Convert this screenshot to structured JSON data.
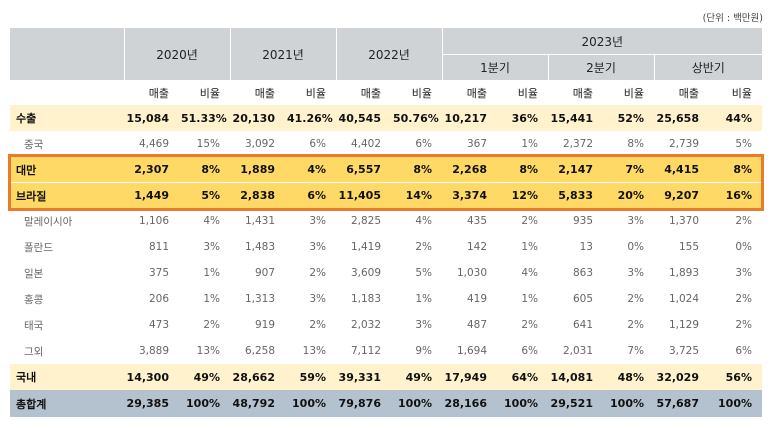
{
  "unit_note": "(단위 : 백만원)",
  "headers": {
    "years": [
      "2020년",
      "2021년",
      "2022년"
    ],
    "year2023": "2023년",
    "periods2023": [
      "1분기",
      "2분기",
      "상반기"
    ],
    "revenue": "매출",
    "ratio": "비율"
  },
  "rows": [
    {
      "label": "수출",
      "style": "major",
      "cells": [
        "15,084",
        "51.33%",
        "20,130",
        "41.26%",
        "40,545",
        "50.76%",
        "10,217",
        "36%",
        "15,441",
        "52%",
        "25,658",
        "44%"
      ]
    },
    {
      "label": "중국",
      "style": "minor",
      "cells": [
        "4,469",
        "15%",
        "3,092",
        "6%",
        "4,402",
        "6%",
        "367",
        "1%",
        "2,372",
        "8%",
        "2,739",
        "5%"
      ]
    },
    {
      "label": "대만",
      "style": "hl first",
      "cells": [
        "2,307",
        "8%",
        "1,889",
        "4%",
        "6,557",
        "8%",
        "2,268",
        "8%",
        "2,147",
        "7%",
        "4,415",
        "8%"
      ]
    },
    {
      "label": "브라질",
      "style": "hl",
      "cells": [
        "1,449",
        "5%",
        "2,838",
        "6%",
        "11,405",
        "14%",
        "3,374",
        "12%",
        "5,833",
        "20%",
        "9,207",
        "16%"
      ]
    },
    {
      "label": "말레이시아",
      "style": "minor",
      "cells": [
        "1,106",
        "4%",
        "1,431",
        "3%",
        "2,825",
        "4%",
        "435",
        "2%",
        "935",
        "3%",
        "1,370",
        "2%"
      ]
    },
    {
      "label": "폴란드",
      "style": "minor",
      "cells": [
        "811",
        "3%",
        "1,483",
        "3%",
        "1,419",
        "2%",
        "142",
        "1%",
        "13",
        "0%",
        "155",
        "0%"
      ]
    },
    {
      "label": "일본",
      "style": "minor",
      "cells": [
        "375",
        "1%",
        "907",
        "2%",
        "3,609",
        "5%",
        "1,030",
        "4%",
        "863",
        "3%",
        "1,893",
        "3%"
      ]
    },
    {
      "label": "홍콩",
      "style": "minor",
      "cells": [
        "206",
        "1%",
        "1,313",
        "3%",
        "1,183",
        "1%",
        "419",
        "1%",
        "605",
        "2%",
        "1,024",
        "2%"
      ]
    },
    {
      "label": "태국",
      "style": "minor",
      "cells": [
        "473",
        "2%",
        "919",
        "2%",
        "2,032",
        "3%",
        "487",
        "2%",
        "641",
        "2%",
        "1,129",
        "2%"
      ]
    },
    {
      "label": "그외",
      "style": "minor",
      "cells": [
        "3,889",
        "13%",
        "6,258",
        "13%",
        "7,112",
        "9%",
        "1,694",
        "6%",
        "2,031",
        "7%",
        "3,725",
        "6%"
      ]
    },
    {
      "label": "국내",
      "style": "major",
      "cells": [
        "14,300",
        "49%",
        "28,662",
        "59%",
        "39,331",
        "49%",
        "17,949",
        "64%",
        "14,081",
        "48%",
        "32,029",
        "56%"
      ]
    },
    {
      "label": "총합계",
      "style": "total",
      "cells": [
        "29,385",
        "100%",
        "48,792",
        "100%",
        "79,876",
        "100%",
        "28,166",
        "100%",
        "29,521",
        "100%",
        "57,687",
        "100%"
      ]
    }
  ],
  "highlight_color": "#ea7a2c"
}
